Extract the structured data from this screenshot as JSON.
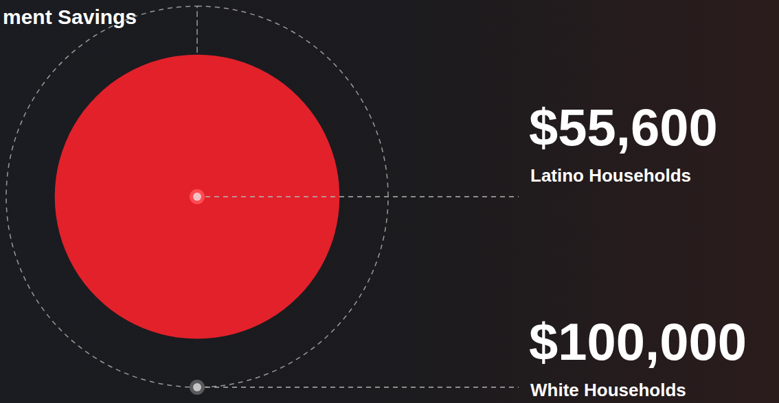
{
  "chart_data": {
    "type": "bubble",
    "title": "ment Savings",
    "categories": [
      "Latino Households",
      "White Households"
    ],
    "values": [
      55600,
      100000
    ],
    "value_labels": [
      "$55,600",
      "$100,000"
    ],
    "colors": [
      "#e3212b",
      "#9a9a9a"
    ],
    "data_labels": true
  }
}
